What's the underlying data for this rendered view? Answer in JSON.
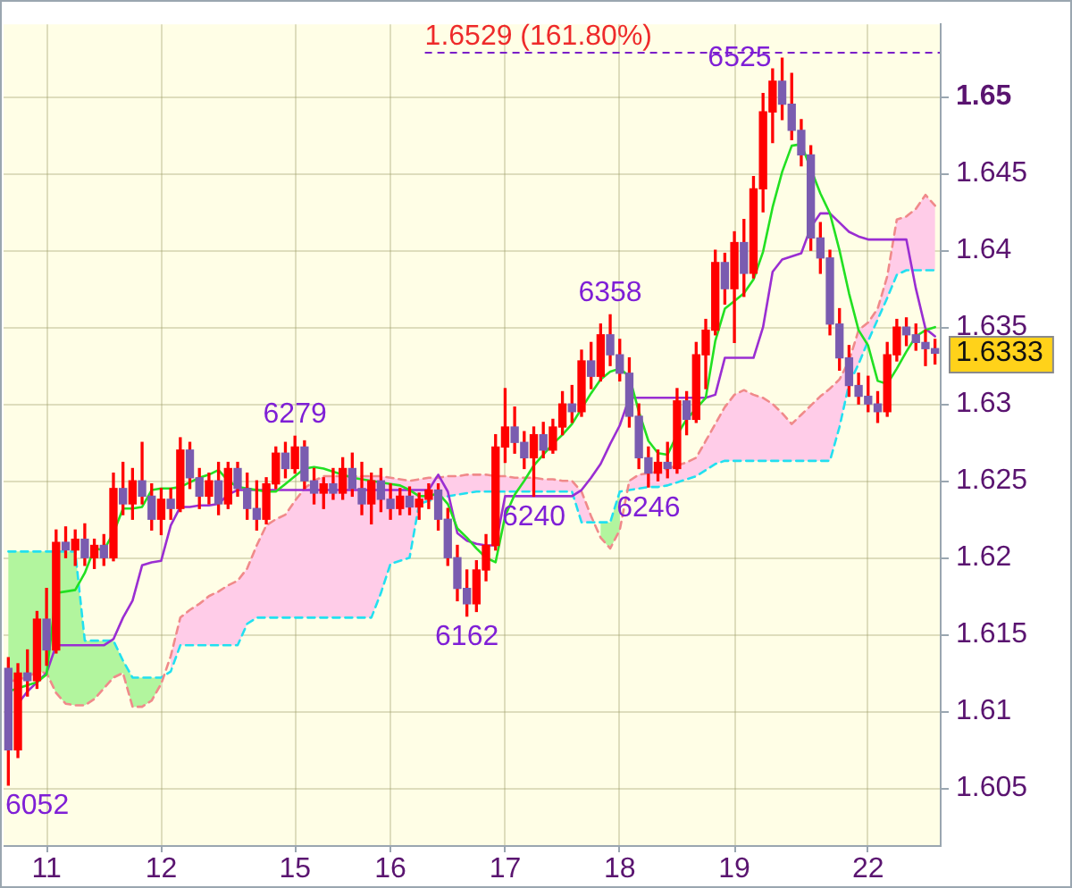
{
  "chart_data": {
    "type": "candlestick",
    "categories": [
      null,
      null,
      null,
      null,
      "11",
      null,
      null,
      null,
      null,
      null,
      null,
      null,
      null,
      null,
      null,
      null,
      "12",
      null,
      null,
      null,
      null,
      null,
      null,
      null,
      null,
      null,
      null,
      null,
      null,
      null,
      "15",
      null,
      null,
      null,
      null,
      null,
      null,
      null,
      null,
      null,
      "16",
      null,
      null,
      null,
      null,
      null,
      null,
      null,
      null,
      null,
      null,
      null,
      "17",
      null,
      null,
      null,
      null,
      null,
      null,
      null,
      null,
      null,
      null,
      null,
      "18",
      null,
      null,
      null,
      null,
      null,
      null,
      null,
      null,
      null,
      null,
      null,
      "19",
      null,
      null,
      null,
      null,
      null,
      null,
      null,
      null,
      null,
      null,
      null,
      null,
      null,
      "22",
      null,
      null,
      null,
      null,
      null,
      null,
      null
    ],
    "ohlc": [
      [
        1.6128,
        1.6135,
        1.6052,
        1.6075
      ],
      [
        1.6075,
        1.6131,
        1.607,
        1.6125
      ],
      [
        1.6125,
        1.614,
        1.611,
        1.612
      ],
      [
        1.612,
        1.6165,
        1.6115,
        1.616
      ],
      [
        1.616,
        1.618,
        1.613,
        1.614
      ],
      [
        1.614,
        1.6218,
        1.6138,
        1.621
      ],
      [
        1.621,
        1.622,
        1.62,
        1.6205
      ],
      [
        1.6205,
        1.6218,
        1.6195,
        1.6212
      ],
      [
        1.6212,
        1.6222,
        1.6195,
        1.62
      ],
      [
        1.62,
        1.6212,
        1.6193,
        1.6208
      ],
      [
        1.6208,
        1.6215,
        1.6195,
        1.62
      ],
      [
        1.62,
        1.6255,
        1.6198,
        1.6245
      ],
      [
        1.6245,
        1.6262,
        1.6228,
        1.6235
      ],
      [
        1.6235,
        1.6258,
        1.6225,
        1.625
      ],
      [
        1.625,
        1.6275,
        1.6235,
        1.624
      ],
      [
        1.624,
        1.6248,
        1.6218,
        1.6225
      ],
      [
        1.6225,
        1.6245,
        1.6215,
        1.6238
      ],
      [
        1.6238,
        1.6245,
        1.6225,
        1.6232
      ],
      [
        1.6232,
        1.6278,
        1.623,
        1.627
      ],
      [
        1.627,
        1.6275,
        1.6245,
        1.6252
      ],
      [
        1.6252,
        1.6258,
        1.6232,
        1.624
      ],
      [
        1.624,
        1.6255,
        1.6235,
        1.625
      ],
      [
        1.625,
        1.6262,
        1.6228,
        1.6235
      ],
      [
        1.6235,
        1.6262,
        1.6232,
        1.6258
      ],
      [
        1.6258,
        1.6262,
        1.624,
        1.6245
      ],
      [
        1.6245,
        1.6255,
        1.6225,
        1.6232
      ],
      [
        1.6232,
        1.625,
        1.6218,
        1.6225
      ],
      [
        1.6225,
        1.6252,
        1.6222,
        1.6248
      ],
      [
        1.6248,
        1.6272,
        1.6245,
        1.6268
      ],
      [
        1.6268,
        1.6275,
        1.6252,
        1.6258
      ],
      [
        1.6258,
        1.6279,
        1.6255,
        1.6272
      ],
      [
        1.6272,
        1.6276,
        1.6245,
        1.625
      ],
      [
        1.625,
        1.6258,
        1.6235,
        1.6242
      ],
      [
        1.6242,
        1.6252,
        1.6232,
        1.6248
      ],
      [
        1.6248,
        1.6258,
        1.6238,
        1.6242
      ],
      [
        1.6242,
        1.6265,
        1.6238,
        1.6258
      ],
      [
        1.6258,
        1.6268,
        1.624,
        1.6245
      ],
      [
        1.6245,
        1.6262,
        1.6228,
        1.6235
      ],
      [
        1.6235,
        1.6255,
        1.6222,
        1.625
      ],
      [
        1.625,
        1.6258,
        1.623,
        1.6238
      ],
      [
        1.6238,
        1.6248,
        1.6225,
        1.6232
      ],
      [
        1.6232,
        1.6245,
        1.6228,
        1.624
      ],
      [
        1.624,
        1.6246,
        1.6228,
        1.6233
      ],
      [
        1.6233,
        1.6242,
        1.6225,
        1.6238
      ],
      [
        1.6238,
        1.6248,
        1.6232,
        1.6244
      ],
      [
        1.6244,
        1.6248,
        1.6218,
        1.6225
      ],
      [
        1.6225,
        1.6232,
        1.6195,
        1.62
      ],
      [
        1.62,
        1.6208,
        1.6172,
        1.618
      ],
      [
        1.618,
        1.6192,
        1.6162,
        1.617
      ],
      [
        1.617,
        1.6198,
        1.6165,
        1.6192
      ],
      [
        1.6192,
        1.6215,
        1.6185,
        1.6208
      ],
      [
        1.6208,
        1.628,
        1.6205,
        1.6272
      ],
      [
        1.6272,
        1.631,
        1.6262,
        1.6285
      ],
      [
        1.6285,
        1.6298,
        1.6268,
        1.6275
      ],
      [
        1.6275,
        1.6282,
        1.6258,
        1.6265
      ],
      [
        1.6265,
        1.6285,
        1.624,
        1.628
      ],
      [
        1.628,
        1.6288,
        1.6265,
        1.627
      ],
      [
        1.627,
        1.629,
        1.6268,
        1.6285
      ],
      [
        1.6285,
        1.6308,
        1.628,
        1.63
      ],
      [
        1.63,
        1.6312,
        1.6288,
        1.6295
      ],
      [
        1.6295,
        1.6335,
        1.6292,
        1.6328
      ],
      [
        1.6328,
        1.634,
        1.631,
        1.6318
      ],
      [
        1.6318,
        1.6352,
        1.6315,
        1.6345
      ],
      [
        1.6345,
        1.6358,
        1.6325,
        1.6332
      ],
      [
        1.6332,
        1.6342,
        1.6315,
        1.632
      ],
      [
        1.632,
        1.633,
        1.6285,
        1.6292
      ],
      [
        1.6292,
        1.63,
        1.6258,
        1.6265
      ],
      [
        1.6265,
        1.6272,
        1.6246,
        1.6255
      ],
      [
        1.6255,
        1.627,
        1.625,
        1.6262
      ],
      [
        1.6262,
        1.6275,
        1.6252,
        1.6258
      ],
      [
        1.6258,
        1.631,
        1.6255,
        1.6302
      ],
      [
        1.6302,
        1.6308,
        1.628,
        1.629
      ],
      [
        1.629,
        1.634,
        1.6288,
        1.6332
      ],
      [
        1.6332,
        1.6355,
        1.631,
        1.6348
      ],
      [
        1.6348,
        1.64,
        1.6345,
        1.6392
      ],
      [
        1.6392,
        1.6398,
        1.6365,
        1.6375
      ],
      [
        1.6375,
        1.6412,
        1.634,
        1.6405
      ],
      [
        1.6405,
        1.642,
        1.637,
        1.6385
      ],
      [
        1.6385,
        1.6448,
        1.6382,
        1.644
      ],
      [
        1.644,
        1.6502,
        1.6425,
        1.649
      ],
      [
        1.649,
        1.6518,
        1.647,
        1.651
      ],
      [
        1.651,
        1.6525,
        1.6485,
        1.6495
      ],
      [
        1.6495,
        1.6515,
        1.6472,
        1.6478
      ],
      [
        1.6478,
        1.6485,
        1.6455,
        1.6462
      ],
      [
        1.6462,
        1.6468,
        1.64,
        1.6408
      ],
      [
        1.6408,
        1.6418,
        1.6385,
        1.6395
      ],
      [
        1.6395,
        1.64,
        1.6345,
        1.6352
      ],
      [
        1.6352,
        1.6362,
        1.6322,
        1.633
      ],
      [
        1.633,
        1.6338,
        1.6305,
        1.6312
      ],
      [
        1.6312,
        1.632,
        1.63,
        1.6305
      ],
      [
        1.6305,
        1.6318,
        1.6295,
        1.63
      ],
      [
        1.63,
        1.6308,
        1.6288,
        1.6295
      ],
      [
        1.6295,
        1.634,
        1.6292,
        1.6332
      ],
      [
        1.6332,
        1.6355,
        1.6328,
        1.635
      ],
      [
        1.635,
        1.6356,
        1.6338,
        1.6345
      ],
      [
        1.6345,
        1.6352,
        1.6335,
        1.634
      ],
      [
        1.634,
        1.6348,
        1.6325,
        1.6336
      ],
      [
        1.6336,
        1.6342,
        1.6326,
        1.6333
      ]
    ],
    "colors": [
      "#7a5cb0",
      "#ff0000",
      "#7a5cb0",
      "#ff0000",
      "#7a5cb0",
      "#ff0000",
      "#7a5cb0",
      "#ff0000",
      "#7a5cb0",
      "#ff0000",
      "#7a5cb0",
      "#ff0000",
      "#7a5cb0",
      "#ff0000",
      "#7a5cb0",
      "#7a5cb0",
      "#ff0000",
      "#7a5cb0",
      "#ff0000",
      "#7a5cb0",
      "#7a5cb0",
      "#ff0000",
      "#7a5cb0",
      "#ff0000",
      "#7a5cb0",
      "#7a5cb0",
      "#7a5cb0",
      "#ff0000",
      "#ff0000",
      "#7a5cb0",
      "#ff0000",
      "#7a5cb0",
      "#7a5cb0",
      "#ff0000",
      "#7a5cb0",
      "#ff0000",
      "#7a5cb0",
      "#7a5cb0",
      "#ff0000",
      "#7a5cb0",
      "#7a5cb0",
      "#ff0000",
      "#7a5cb0",
      "#ff0000",
      "#ff0000",
      "#7a5cb0",
      "#7a5cb0",
      "#7a5cb0",
      "#7a5cb0",
      "#ff0000",
      "#ff0000",
      "#ff0000",
      "#ff0000",
      "#7a5cb0",
      "#7a5cb0",
      "#ff0000",
      "#7a5cb0",
      "#ff0000",
      "#ff0000",
      "#7a5cb0",
      "#ff0000",
      "#7a5cb0",
      "#ff0000",
      "#7a5cb0",
      "#7a5cb0",
      "#7a5cb0",
      "#7a5cb0",
      "#7a5cb0",
      "#ff0000",
      "#7a5cb0",
      "#ff0000",
      "#7a5cb0",
      "#ff0000",
      "#ff0000",
      "#ff0000",
      "#7a5cb0",
      "#ff0000",
      "#7a5cb0",
      "#ff0000",
      "#ff0000",
      "#ff0000",
      "#7a5cb0",
      "#7a5cb0",
      "#7a5cb0",
      "#7a5cb0",
      "#7a5cb0",
      "#7a5cb0",
      "#7a5cb0",
      "#7a5cb0",
      "#7a5cb0",
      "#7a5cb0",
      "#7a5cb0",
      "#ff0000",
      "#ff0000",
      "#7a5cb0",
      "#7a5cb0",
      "#7a5cb0",
      "#7a5cb0"
    ],
    "series": [
      {
        "type": "line",
        "line_style": "dashed",
        "color": "#f08a8a",
        "values": [
          1.6119,
          1.6121,
          1.6122,
          1.6126,
          1.6125,
          1.6112,
          1.6105,
          1.6104,
          1.6104,
          1.6108,
          1.6115,
          1.6122,
          1.6125,
          1.6103,
          1.6103,
          1.6107,
          1.6118,
          1.6136,
          1.6161,
          1.6166,
          1.617,
          1.6175,
          1.6178,
          1.6182,
          1.6185,
          1.6193,
          1.6208,
          1.6221,
          1.6225,
          1.6228,
          1.6237,
          1.6245,
          1.625,
          1.6253,
          1.6253,
          1.6253,
          1.6253,
          1.6253,
          1.6253,
          1.6253,
          1.6252,
          1.6251,
          1.625,
          1.6251,
          1.6252,
          1.6252,
          1.6253,
          1.6253,
          1.6254,
          1.6254,
          1.6254,
          1.6253,
          1.6253,
          1.6252,
          1.6252,
          1.6252,
          1.6251,
          1.6251,
          1.625,
          1.625,
          1.6243,
          1.6227,
          1.6213,
          1.6206,
          1.6218,
          1.625,
          1.6254,
          1.6255,
          1.6256,
          1.6258,
          1.626,
          1.6262,
          1.6265,
          1.6276,
          1.6287,
          1.6298,
          1.6306,
          1.6309,
          1.6306,
          1.6304,
          1.63,
          1.6294,
          1.6287,
          1.6293,
          1.6299,
          1.6305,
          1.631,
          1.6316,
          1.6328,
          1.6348,
          1.6353,
          1.6362,
          1.6383,
          1.642,
          1.6422,
          1.6427,
          1.6436,
          1.6429
        ],
        "lower": [
          null,
          null,
          null,
          null,
          null,
          null,
          null,
          null,
          null,
          null,
          null,
          null,
          null,
          null,
          null,
          null,
          null,
          1.6126,
          1.6143,
          1.6143,
          1.6143,
          1.6143,
          1.6143,
          1.6143,
          1.6143,
          1.6157,
          1.6161,
          1.6161,
          1.6161,
          1.6161,
          1.6161,
          1.6161,
          1.6161,
          1.6161,
          1.6161,
          1.6161,
          1.6161,
          1.6161,
          1.6161,
          1.6177,
          1.6196,
          1.6198,
          1.62,
          1.6235,
          1.6237,
          1.6238,
          1.624,
          1.6241,
          1.6242,
          1.6243,
          1.6243,
          1.6243,
          1.6243,
          1.6243,
          1.6243,
          1.6243,
          1.6243,
          1.6243,
          1.6243,
          1.6243,
          1.6223,
          1.6223,
          null,
          null,
          null,
          1.6244,
          1.6245,
          1.6246,
          1.6246,
          1.6247,
          1.6249,
          1.6251,
          1.6253,
          1.6257,
          1.6261,
          1.6263,
          1.6263,
          1.6263,
          1.6263,
          1.6263,
          1.6263,
          1.6263,
          1.6263,
          1.6263,
          1.6263,
          1.6263,
          1.6263,
          1.6285,
          1.6313,
          1.6326,
          1.6341,
          1.6355,
          1.6369,
          1.6384,
          1.6387,
          1.6387,
          1.6387,
          1.6387
        ],
        "upper": [
          null,
          null,
          null,
          null,
          null,
          null,
          null,
          null,
          null,
          null,
          null,
          null,
          null,
          null,
          null,
          null,
          null,
          1.6136,
          1.6161,
          1.6166,
          1.617,
          1.6175,
          1.6178,
          1.6182,
          1.6185,
          1.6193,
          1.6208,
          1.6221,
          1.6225,
          1.6228,
          1.6237,
          1.6245,
          1.625,
          1.6253,
          1.6253,
          1.6253,
          1.6253,
          1.6253,
          1.6253,
          1.6253,
          1.6252,
          1.6251,
          1.625,
          1.6251,
          1.6252,
          1.6252,
          1.6253,
          1.6253,
          1.6254,
          1.6254,
          1.6254,
          1.6253,
          1.6253,
          1.6252,
          1.6252,
          1.6252,
          1.6251,
          1.6251,
          1.625,
          1.625,
          1.6243,
          1.6227,
          null,
          null,
          null,
          1.625,
          1.6254,
          1.6255,
          1.6256,
          1.6258,
          1.626,
          1.6262,
          1.6265,
          1.6276,
          1.6287,
          1.6298,
          1.6306,
          1.6309,
          1.6306,
          1.6304,
          1.63,
          1.6294,
          1.6287,
          1.6293,
          1.6299,
          1.6305,
          1.631,
          1.6316,
          1.6328,
          1.6348,
          1.6353,
          1.6362,
          1.6383,
          1.642,
          1.6422,
          1.6427,
          1.6436,
          1.6429
        ]
      },
      {
        "type": "line",
        "line_style": "dashed",
        "color": "#22e0f0",
        "values": [
          1.6204,
          1.6204,
          1.6204,
          1.6204,
          1.6204,
          1.6204,
          1.6204,
          1.6204,
          1.6146,
          1.6146,
          1.6146,
          1.6146,
          1.6133,
          1.6122,
          1.6122,
          1.6122,
          1.6122,
          1.6126,
          1.6143,
          1.6143,
          1.6143,
          1.6143,
          1.6143,
          1.6143,
          1.6143,
          1.6157,
          1.6161,
          1.6161,
          1.6161,
          1.6161,
          1.6161,
          1.6161,
          1.6161,
          1.6161,
          1.6161,
          1.6161,
          1.6161,
          1.6161,
          1.6161,
          1.6177,
          1.6196,
          1.6198,
          1.62,
          1.6235,
          1.6237,
          1.6238,
          1.624,
          1.6241,
          1.6242,
          1.6243,
          1.6243,
          1.6243,
          1.6243,
          1.6243,
          1.6243,
          1.6243,
          1.6243,
          1.6243,
          1.6243,
          1.6243,
          1.6223,
          1.6223,
          1.6223,
          1.6223,
          1.6243,
          1.6244,
          1.6245,
          1.6246,
          1.6246,
          1.6247,
          1.6249,
          1.6251,
          1.6253,
          1.6257,
          1.6261,
          1.6263,
          1.6263,
          1.6263,
          1.6263,
          1.6263,
          1.6263,
          1.6263,
          1.6263,
          1.6263,
          1.6263,
          1.6263,
          1.6263,
          1.6285,
          1.6313,
          1.6326,
          1.6341,
          1.6355,
          1.6369,
          1.6384,
          1.6387,
          1.6387,
          1.6387,
          1.6387
        ],
        "lower": [
          1.6119,
          1.6121,
          1.6122,
          1.6126,
          1.6125,
          1.6112,
          1.6105,
          1.6104,
          1.6104,
          1.6108,
          1.6115,
          1.6122,
          1.6125,
          1.6103,
          1.6103,
          1.6107,
          1.6118,
          null,
          null,
          null,
          null,
          null,
          null,
          null,
          null,
          null,
          null,
          null,
          null,
          null,
          null,
          null,
          null,
          null,
          null,
          null,
          null,
          null,
          null,
          null,
          null,
          null,
          null,
          null,
          null,
          null,
          null,
          null,
          null,
          null,
          null,
          null,
          null,
          null,
          null,
          null,
          null,
          null,
          null,
          null,
          null,
          null,
          1.6213,
          1.6206,
          1.6218,
          null,
          null,
          null,
          null,
          null,
          null,
          null,
          null,
          null,
          null,
          null,
          null,
          null,
          null,
          null,
          null,
          null,
          null,
          null,
          null,
          null,
          null,
          null,
          null,
          null,
          null,
          null,
          null,
          null,
          null,
          null,
          null,
          null
        ],
        "upper": [
          1.6204,
          1.6204,
          1.6204,
          1.6204,
          1.6204,
          1.6204,
          1.6204,
          1.6204,
          1.6146,
          1.6146,
          1.6146,
          1.6146,
          1.6133,
          1.6122,
          1.6122,
          1.6122,
          1.6122,
          null,
          null,
          null,
          null,
          null,
          null,
          null,
          null,
          null,
          null,
          null,
          null,
          null,
          null,
          null,
          null,
          null,
          null,
          null,
          null,
          null,
          null,
          null,
          null,
          null,
          null,
          null,
          null,
          null,
          null,
          null,
          null,
          null,
          null,
          null,
          null,
          null,
          null,
          null,
          null,
          null,
          null,
          null,
          null,
          null,
          1.6223,
          1.6223,
          1.6243,
          null,
          null,
          null,
          null,
          null,
          null,
          null,
          null,
          null,
          null,
          null,
          null,
          null,
          null,
          null,
          null,
          null,
          null,
          null,
          null,
          null,
          null,
          null,
          null,
          null,
          null,
          null,
          null,
          null,
          null,
          null,
          null,
          null
        ]
      },
      {
        "type": "line",
        "color": "#22e022",
        "values": [
          1.6113,
          1.6115,
          1.6117,
          1.6119,
          1.6124,
          1.6177,
          1.6178,
          1.6179,
          1.619,
          1.6206,
          1.6205,
          1.6216,
          1.6232,
          1.6232,
          1.6233,
          1.6244,
          1.6245,
          1.6245,
          1.6246,
          1.6249,
          1.6252,
          1.6254,
          1.6257,
          1.625,
          1.6246,
          1.6245,
          1.6244,
          1.6243,
          1.6243,
          1.6248,
          1.6253,
          1.6258,
          1.6259,
          1.6258,
          1.6256,
          1.6254,
          1.6252,
          1.6251,
          1.625,
          1.6249,
          1.6248,
          1.6247,
          1.6244,
          1.624,
          1.624,
          1.6242,
          1.6235,
          1.6219,
          1.6213,
          1.6206,
          1.62,
          1.6197,
          1.6227,
          1.6241,
          1.625,
          1.626,
          1.6267,
          1.6274,
          1.628,
          1.6287,
          1.6297,
          1.6307,
          1.6316,
          1.6321,
          1.6323,
          1.6318,
          1.6295,
          1.6276,
          1.6268,
          1.6267,
          1.628,
          1.629,
          1.6297,
          1.6304,
          1.6341,
          1.6362,
          1.6367,
          1.6372,
          1.6381,
          1.6399,
          1.6428,
          1.6451,
          1.6468,
          1.6469,
          null,
          1.6437,
          1.6424,
          1.64,
          1.6372,
          1.6348,
          1.6338,
          1.6315,
          1.6313,
          1.6323,
          1.6334,
          1.6344,
          1.6348,
          1.635
        ]
      },
      {
        "type": "line",
        "color": "#9a2ed2",
        "values": [
          null,
          1.6105,
          1.6113,
          1.6119,
          1.6125,
          1.6143,
          1.6143,
          1.6143,
          1.6143,
          1.6143,
          1.6143,
          1.6147,
          1.6161,
          1.6172,
          1.6195,
          1.6197,
          1.6198,
          1.6221,
          1.6233,
          1.6233,
          1.6234,
          1.6234,
          1.6235,
          1.6241,
          1.6244,
          1.6244,
          1.6244,
          1.6244,
          1.6244,
          1.6244,
          1.6244,
          1.6244,
          1.6244,
          1.6244,
          1.6244,
          1.6244,
          1.6244,
          1.6244,
          1.6244,
          1.6244,
          1.6244,
          1.6244,
          1.6244,
          1.6244,
          1.6244,
          1.6254,
          1.6243,
          1.6216,
          1.6211,
          1.6209,
          1.6208,
          1.6208,
          1.624,
          1.624,
          1.624,
          1.624,
          1.624,
          1.624,
          1.624,
          1.624,
          1.6244,
          1.6252,
          1.6261,
          1.6274,
          1.6286,
          1.6304,
          1.6304,
          1.6304,
          1.6304,
          1.6304,
          1.6304,
          1.6304,
          1.6304,
          1.6304,
          1.6306,
          1.633,
          1.633,
          1.633,
          1.633,
          1.635,
          1.6386,
          1.6394,
          1.6396,
          1.6398,
          1.6415,
          1.6424,
          1.6424,
          1.6418,
          1.6412,
          1.6409,
          1.6407,
          1.6407,
          1.6407,
          1.6407,
          1.6407,
          1.6375,
          1.6349,
          1.6344
        ]
      }
    ],
    "ylim": [
      1.6013,
      1.6547
    ],
    "yticks": [
      1.605,
      1.61,
      1.615,
      1.62,
      1.625,
      1.63,
      1.6333,
      1.635,
      1.64,
      1.645,
      1.65
    ],
    "grid": true,
    "ref_lines": [
      {
        "axis": "y",
        "value": 1.6529,
        "label": "1.6529 (161.80%)",
        "color": "#7a1ec8",
        "line_style": "dashed"
      }
    ],
    "annotations": [
      "6052",
      {
        "text": "6279",
        "y": 1.6279
      },
      {
        "text": "6162",
        "y": 1.6162
      },
      {
        "text": "6240",
        "y": 1.624
      },
      {
        "text": "6358",
        "y": 1.6358
      },
      {
        "text": "6246",
        "y": 1.6246
      },
      {
        "text": "6525",
        "y": 1.6525
      }
    ]
  }
}
